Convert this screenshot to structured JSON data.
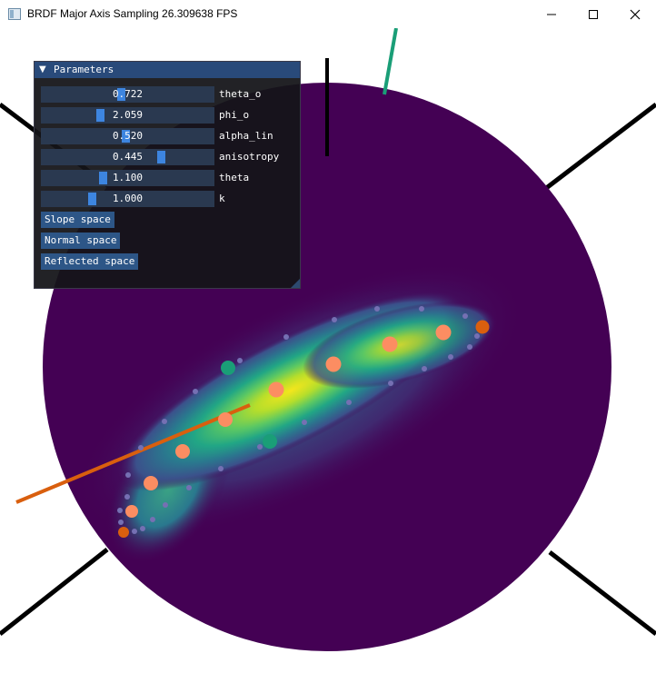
{
  "window": {
    "title": "BRDF Major Axis Sampling  26.309638 FPS",
    "minimize_icon": "minimize-icon",
    "maximize_icon": "maximize-icon",
    "close_icon": "close-icon"
  },
  "panel": {
    "title": "Parameters",
    "collapse_icon": "triangle-down-icon",
    "sliders": [
      {
        "value": "0.722",
        "label": "theta_o",
        "fraction": 0.46
      },
      {
        "value": "2.059",
        "label": "phi_o",
        "fraction": 0.33
      },
      {
        "value": "0.520",
        "label": "alpha_lin",
        "fraction": 0.49
      },
      {
        "value": "0.445",
        "label": "anisotropy",
        "fraction": 0.71
      },
      {
        "value": "1.100",
        "label": "theta",
        "fraction": 0.35
      },
      {
        "value": "1.000",
        "label": "k",
        "fraction": 0.28
      }
    ],
    "buttons": [
      "Slope space",
      "Normal space",
      "Reflected space"
    ]
  },
  "colors": {
    "orange_line": "#d95f0e",
    "teal_line": "#1a9e77",
    "sample_dot": "#fc8d62",
    "outline_dot": "#7570b3",
    "sphere_dark": "#440154",
    "lobe_peak": "#f4e61c"
  }
}
